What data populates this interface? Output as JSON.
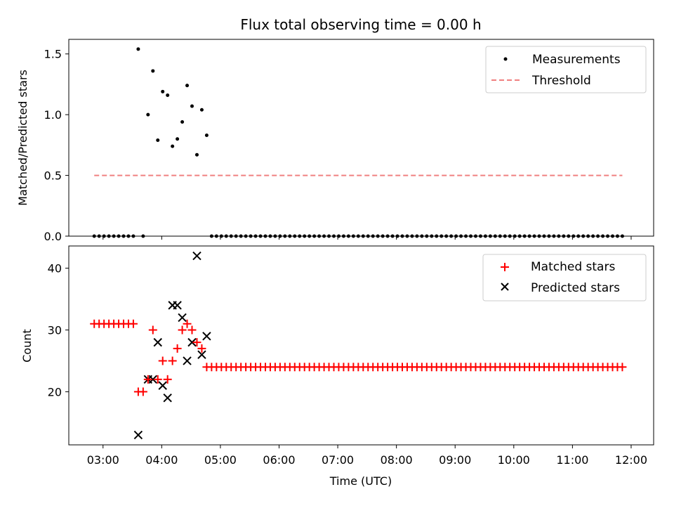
{
  "chart_data": {
    "title": "Flux total observing time = 0.00 h",
    "xlabel": "Time (UTC)",
    "x_ticks": [
      "03:00",
      "04:00",
      "05:00",
      "06:00",
      "07:00",
      "08:00",
      "09:00",
      "10:00",
      "11:00",
      "12:00"
    ],
    "xlim": [
      "02:25",
      "12:23"
    ],
    "panels": [
      {
        "type": "scatter",
        "ylabel": "Matched/Predicted stars",
        "ylim": [
          0.0,
          1.62
        ],
        "y_ticks": [
          "0.0",
          "0.5",
          "1.0",
          "1.5"
        ],
        "y_tick_values": [
          0.0,
          0.5,
          1.0,
          1.5
        ],
        "legend_position": "upper-right",
        "series": [
          {
            "name": "Measurements",
            "marker": "dot",
            "color": "#000000",
            "points": [
              [
                "03:36",
                1.54
              ],
              [
                "03:46",
                1.0
              ],
              [
                "03:51",
                1.36
              ],
              [
                "03:56",
                0.79
              ],
              [
                "04:01",
                1.19
              ],
              [
                "04:06",
                1.16
              ],
              [
                "04:11",
                0.74
              ],
              [
                "04:16",
                0.8
              ],
              [
                "04:21",
                0.94
              ],
              [
                "04:26",
                1.24
              ],
              [
                "04:31",
                1.07
              ],
              [
                "04:36",
                0.67
              ],
              [
                "04:41",
                1.04
              ],
              [
                "04:46",
                0.83
              ],
              [
                "03:41",
                0.0
              ]
            ],
            "zero_ranges": [
              [
                "02:51",
                "03:31",
                5
              ],
              [
                "04:51",
                "11:51",
                5
              ]
            ]
          },
          {
            "name": "Threshold",
            "marker": "dashed-line",
            "color": "#f08080",
            "y": 0.5,
            "x_range": [
              "02:51",
              "11:51"
            ]
          }
        ]
      },
      {
        "type": "scatter",
        "ylabel": "Count",
        "ylim": [
          11.4,
          43.6
        ],
        "y_ticks": [
          "20",
          "30",
          "40"
        ],
        "y_tick_values": [
          20,
          30,
          40
        ],
        "legend_position": "upper-right",
        "series": [
          {
            "name": "Matched stars",
            "marker": "plus",
            "color": "#ff0000",
            "points": [
              [
                "03:36",
                20
              ],
              [
                "03:41",
                20
              ],
              [
                "03:46",
                22
              ],
              [
                "03:51",
                30
              ],
              [
                "03:56",
                22
              ],
              [
                "04:01",
                25
              ],
              [
                "04:06",
                22
              ],
              [
                "04:11",
                25
              ],
              [
                "04:16",
                27
              ],
              [
                "04:21",
                30
              ],
              [
                "04:26",
                31
              ],
              [
                "04:31",
                30
              ],
              [
                "04:36",
                28
              ],
              [
                "04:41",
                27
              ],
              [
                "04:46",
                24
              ]
            ],
            "constant_ranges": [
              [
                "02:51",
                "03:31",
                5,
                31
              ],
              [
                "04:51",
                "11:51",
                5,
                24
              ]
            ]
          },
          {
            "name": "Predicted stars",
            "marker": "x",
            "color": "#000000",
            "points": [
              [
                "03:36",
                13
              ],
              [
                "03:46",
                22
              ],
              [
                "03:51",
                22
              ],
              [
                "03:56",
                28
              ],
              [
                "04:01",
                21
              ],
              [
                "04:06",
                19
              ],
              [
                "04:11",
                34
              ],
              [
                "04:16",
                34
              ],
              [
                "04:21",
                32
              ],
              [
                "04:26",
                25
              ],
              [
                "04:31",
                28
              ],
              [
                "04:36",
                42
              ],
              [
                "04:41",
                26
              ],
              [
                "04:46",
                29
              ]
            ]
          }
        ]
      }
    ]
  }
}
